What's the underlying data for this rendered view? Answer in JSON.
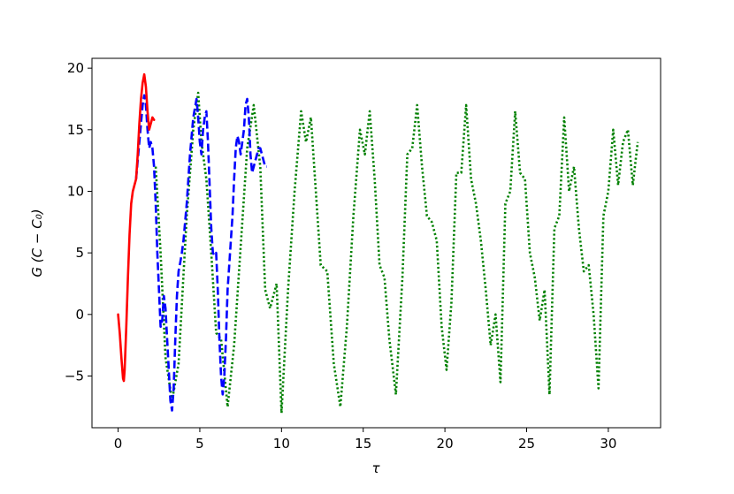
{
  "chart_data": {
    "type": "line",
    "title": "",
    "xlabel": "τ",
    "ylabel": "G (C − C₀)",
    "xlim": [
      -1.6,
      33.2
    ],
    "ylim": [
      -9.2,
      20.8
    ],
    "xticks": [
      0,
      5,
      10,
      15,
      20,
      25,
      30
    ],
    "yticks": [
      -5,
      0,
      5,
      10,
      15,
      20
    ],
    "xtick_labels": [
      "0",
      "5",
      "10",
      "15",
      "20",
      "25",
      "30"
    ],
    "ytick_labels": [
      "−5",
      "0",
      "5",
      "10",
      "15",
      "20"
    ],
    "grid": false,
    "legend": false,
    "series": [
      {
        "color": "#ff0000",
        "style": "solid",
        "x": [
          0.0,
          0.1,
          0.2,
          0.3,
          0.35,
          0.4,
          0.5,
          0.6,
          0.7,
          0.8,
          0.9,
          1.0,
          1.1,
          1.2,
          1.3,
          1.4,
          1.5,
          1.6,
          1.7,
          1.8,
          1.9,
          2.0,
          2.1,
          2.2
        ],
        "y": [
          0.0,
          -1.5,
          -3.5,
          -5.2,
          -5.4,
          -4.5,
          -1.0,
          3.0,
          6.5,
          9.0,
          10.0,
          10.5,
          11.0,
          13.0,
          15.5,
          17.5,
          18.8,
          19.5,
          18.5,
          16.5,
          15.0,
          15.5,
          16.0,
          15.8
        ]
      },
      {
        "color": "#0000ff",
        "style": "dashed",
        "x": [
          1.1,
          1.3,
          1.5,
          1.6,
          1.7,
          1.8,
          1.9,
          2.0,
          2.1,
          2.2,
          2.3,
          2.4,
          2.5,
          2.6,
          2.7,
          2.8,
          2.9,
          3.0,
          3.1,
          3.2,
          3.3,
          3.4,
          3.5,
          3.6,
          3.7,
          3.8,
          3.9,
          4.0,
          4.2,
          4.4,
          4.6,
          4.8,
          4.9,
          5.0,
          5.1,
          5.2,
          5.3,
          5.4,
          5.5,
          5.6,
          5.7,
          5.8,
          5.9,
          6.0,
          6.1,
          6.2,
          6.3,
          6.4,
          6.5,
          6.6,
          6.7,
          6.8,
          6.9,
          7.0,
          7.1,
          7.2,
          7.3,
          7.4,
          7.5,
          7.6,
          7.7,
          7.8,
          7.9,
          8.0,
          8.1,
          8.2,
          8.3,
          8.4,
          8.5,
          8.6,
          8.7,
          8.8,
          8.9,
          9.0,
          9.1
        ],
        "y": [
          11.0,
          14.0,
          17.0,
          17.8,
          17.0,
          15.0,
          13.5,
          14.0,
          13.5,
          12.0,
          9.0,
          5.0,
          2.0,
          -1.0,
          -0.5,
          1.5,
          0.5,
          -2.0,
          -4.5,
          -7.0,
          -7.8,
          -6.0,
          -2.0,
          1.5,
          3.5,
          4.2,
          5.0,
          6.0,
          9.0,
          13.0,
          16.0,
          17.5,
          16.0,
          14.0,
          13.0,
          15.0,
          16.0,
          16.5,
          14.0,
          10.5,
          7.0,
          5.0,
          4.8,
          5.0,
          2.0,
          -2.0,
          -5.0,
          -6.5,
          -5.0,
          -2.0,
          2.0,
          4.0,
          6.0,
          8.0,
          11.0,
          13.5,
          14.5,
          14.0,
          13.0,
          14.0,
          15.0,
          17.0,
          17.5,
          16.0,
          13.0,
          11.5,
          12.0,
          12.5,
          13.0,
          13.5,
          13.5,
          13.0,
          12.5,
          12.0,
          12.0
        ]
      },
      {
        "color": "#008000",
        "style": "dotted",
        "x": [
          2.3,
          2.6,
          2.9,
          3.3,
          3.7,
          4.2,
          4.6,
          4.9,
          5.1,
          5.4,
          5.7,
          6.0,
          6.3,
          6.7,
          7.1,
          7.5,
          7.9,
          8.3,
          8.7,
          9.0,
          9.3,
          9.7,
          10.0,
          10.4,
          10.8,
          11.2,
          11.5,
          11.8,
          12.1,
          12.4,
          12.8,
          13.2,
          13.6,
          14.0,
          14.4,
          14.8,
          15.1,
          15.4,
          15.7,
          16.0,
          16.3,
          16.6,
          17.0,
          17.4,
          17.7,
          18.0,
          18.3,
          18.6,
          18.9,
          19.2,
          19.5,
          19.8,
          20.1,
          20.4,
          20.7,
          21.0,
          21.3,
          21.6,
          21.9,
          22.2,
          22.5,
          22.8,
          23.1,
          23.4,
          23.7,
          24.0,
          24.3,
          24.6,
          24.9,
          25.2,
          25.5,
          25.8,
          26.1,
          26.4,
          26.7,
          27.0,
          27.3,
          27.6,
          27.9,
          28.2,
          28.5,
          28.8,
          29.1,
          29.4,
          29.7,
          30.0,
          30.3,
          30.6,
          30.9,
          31.2,
          31.5,
          31.8
        ],
        "y": [
          12.0,
          5.0,
          -3.5,
          -7.0,
          -4.0,
          8.0,
          15.0,
          18.0,
          14.0,
          11.0,
          5.0,
          -1.5,
          -2.0,
          -7.5,
          -2.5,
          5.5,
          13.5,
          17.0,
          12.0,
          2.0,
          0.5,
          2.5,
          -8.0,
          2.0,
          10.0,
          16.5,
          14.0,
          16.0,
          10.0,
          4.0,
          3.5,
          -4.0,
          -7.5,
          -1.0,
          8.0,
          15.0,
          13.0,
          16.5,
          11.0,
          4.0,
          3.0,
          -2.0,
          -6.5,
          3.0,
          13.0,
          13.5,
          17.0,
          12.0,
          8.0,
          7.5,
          6.0,
          -1.0,
          -4.5,
          1.0,
          11.5,
          11.5,
          17.0,
          11.0,
          9.0,
          6.0,
          2.0,
          -2.5,
          0.0,
          -5.5,
          9.0,
          10.0,
          16.5,
          11.5,
          11.0,
          5.0,
          3.0,
          -0.5,
          2.0,
          -6.5,
          7.0,
          8.0,
          16.0,
          10.0,
          12.0,
          7.0,
          3.5,
          4.0,
          0.0,
          -6.0,
          8.0,
          10.0,
          15.0,
          10.5,
          14.0,
          15.0,
          10.5,
          14.0
        ]
      }
    ]
  }
}
